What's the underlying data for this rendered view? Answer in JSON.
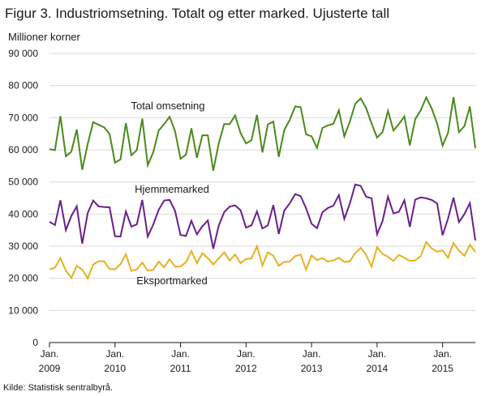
{
  "chart_data": {
    "type": "line",
    "title": "Figur 3. Industriomsetning. Totalt og etter marked. Ujusterte tall",
    "ylabel": "Millioner  korner",
    "ylim": [
      0,
      90000
    ],
    "yticks": [
      0,
      10000,
      20000,
      30000,
      40000,
      50000,
      60000,
      70000,
      80000,
      90000
    ],
    "ytick_labels": [
      "0",
      "10 000",
      "20 000",
      "30 000",
      "40 000",
      "50 000",
      "60 000",
      "70 000",
      "80 000",
      "90 000"
    ],
    "x_start": "2009-01",
    "x_labels": [
      {
        "month": "Jan.",
        "year": "2009"
      },
      {
        "month": "Jan.",
        "year": "2010"
      },
      {
        "month": "Jan.",
        "year": "2011"
      },
      {
        "month": "Jan.",
        "year": "2012"
      },
      {
        "month": "Jan.",
        "year": "2013"
      },
      {
        "month": "Jan.",
        "year": "2014"
      },
      {
        "month": "Jan.",
        "year": "2015"
      }
    ],
    "grid": true,
    "series": [
      {
        "name": "Total omsetning",
        "color": "#4a8a1b",
        "values": [
          60200,
          59900,
          70500,
          58000,
          59400,
          66300,
          53800,
          61800,
          68600,
          67800,
          67000,
          65000,
          56000,
          57000,
          68300,
          58300,
          59900,
          69700,
          55200,
          59200,
          66000,
          68000,
          70300,
          65800,
          57200,
          58500,
          66700,
          57500,
          64500,
          64500,
          53500,
          62000,
          68000,
          68000,
          70700,
          65200,
          62000,
          63000,
          70900,
          59200,
          67900,
          68800,
          57800,
          66200,
          69300,
          73500,
          73300,
          64800,
          64200,
          60600,
          66800,
          67600,
          68100,
          72300,
          64200,
          68700,
          74300,
          76000,
          73000,
          68200,
          63800,
          65500,
          72100,
          66000,
          68000,
          70400,
          61400,
          69600,
          72300,
          76300,
          72900,
          68200,
          61300,
          65300,
          76400,
          65500,
          67400,
          73500,
          60500
        ]
      },
      {
        "name": "Hjemmemarked",
        "color": "#6a1f8a",
        "values": [
          37600,
          36600,
          44300,
          35000,
          39400,
          42400,
          30800,
          40300,
          44200,
          42400,
          42200,
          42100,
          33100,
          33000,
          40800,
          36100,
          36800,
          44400,
          33000,
          36700,
          41300,
          44200,
          44400,
          41000,
          33500,
          33200,
          37900,
          33700,
          36200,
          38000,
          29200,
          36400,
          40600,
          42300,
          42700,
          41200,
          35800,
          36500,
          40800,
          35500,
          36500,
          42800,
          33800,
          41100,
          43300,
          46200,
          45600,
          41800,
          37000,
          35600,
          40600,
          41900,
          42600,
          45900,
          38500,
          43200,
          49200,
          48800,
          45400,
          44900,
          33700,
          37800,
          45400,
          40200,
          40700,
          44300,
          36000,
          44500,
          45200,
          44900,
          44400,
          43300,
          33400,
          38600,
          45100,
          37500,
          40000,
          43400,
          31800
        ]
      },
      {
        "name": "Eksportmarked",
        "color": "#e8b020",
        "values": [
          22800,
          23300,
          26300,
          22400,
          20100,
          23900,
          22700,
          20000,
          24300,
          25300,
          25300,
          22900,
          22800,
          24400,
          27500,
          22300,
          22800,
          24900,
          22400,
          22600,
          25200,
          23400,
          26000,
          23600,
          23700,
          25000,
          28500,
          24700,
          27800,
          26300,
          24300,
          26200,
          28100,
          25500,
          27400,
          24700,
          26000,
          26200,
          30000,
          24000,
          28100,
          27000,
          23900,
          25100,
          25200,
          26900,
          27400,
          22700,
          27100,
          25700,
          26300,
          25200,
          25600,
          26400,
          25100,
          25300,
          27800,
          29500,
          27300,
          23600,
          29700,
          27600,
          26700,
          25400,
          27300,
          26400,
          25400,
          25600,
          26900,
          31300,
          29300,
          28300,
          28700,
          26400,
          31000,
          28600,
          27000,
          30400,
          28200
        ]
      }
    ],
    "annotations": [
      {
        "text": "Total omsetning",
        "series": "Total omsetning"
      },
      {
        "text": "Hjemmemarked",
        "series": "Hjemmemarked"
      },
      {
        "text": "Eksportmarked",
        "series": "Eksportmarked"
      }
    ]
  },
  "source": "Kilde: Statistisk sentralbyrå."
}
